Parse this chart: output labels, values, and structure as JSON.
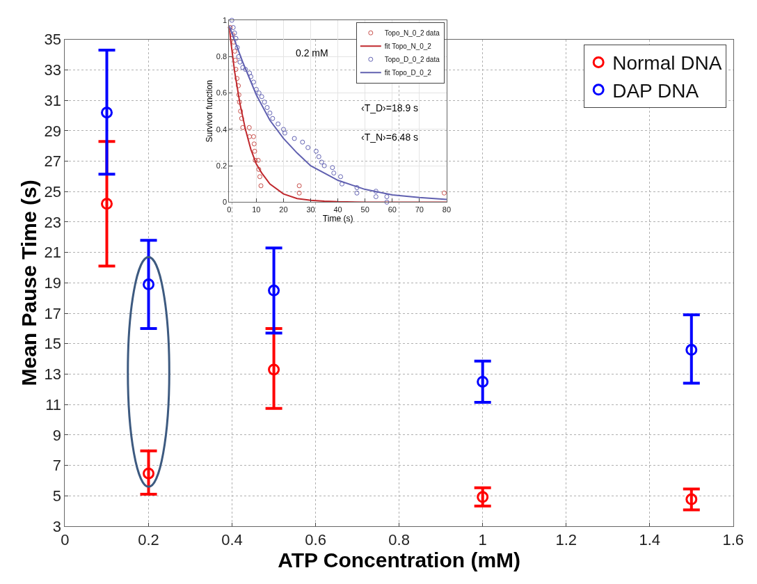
{
  "chart_data": [
    {
      "type": "scatter",
      "xlabel": "ATP Concentration (mM)",
      "ylabel": "Mean Pause Time (s)",
      "xlim": [
        0,
        1.6
      ],
      "xticks": [
        0,
        0.2,
        0.4,
        0.6,
        0.8,
        1,
        1.2,
        1.4,
        1.6
      ],
      "ylim": [
        3,
        35
      ],
      "yticks": [
        3,
        5,
        7,
        9,
        11,
        13,
        15,
        17,
        19,
        21,
        23,
        25,
        27,
        29,
        31,
        33,
        35
      ],
      "grid": true,
      "legend": "top right",
      "marker": "circle",
      "x": [
        0.1,
        0.2,
        0.5,
        1,
        1.5
      ],
      "series": [
        {
          "name": "Normal DNA",
          "color": "#ff0000",
          "values": [
            24.2,
            6.47,
            13.3,
            4.92,
            4.77
          ],
          "errors": [
            [
              20.1,
              28.3
            ],
            [
              5.1,
              7.95
            ],
            [
              10.75,
              16.0
            ],
            [
              4.33,
              5.53
            ],
            [
              4.07,
              5.45
            ]
          ]
        },
        {
          "name": "DAP DNA",
          "color": "#0000ff",
          "values": [
            30.2,
            18.9,
            18.5,
            12.5,
            14.6
          ],
          "errors": [
            [
              26.15,
              34.3
            ],
            [
              16.0,
              21.8
            ],
            [
              15.7,
              21.3
            ],
            [
              11.15,
              13.86
            ],
            [
              12.4,
              16.9
            ]
          ]
        }
      ]
    },
    {
      "type": "scatter",
      "xlabel": "Time (s)",
      "ylabel": "Survivor function",
      "xlim": [
        0,
        80
      ],
      "xticks": [
        0,
        10,
        20,
        30,
        40,
        50,
        60,
        70,
        80
      ],
      "ylim": [
        0,
        1
      ],
      "yticks": [
        0,
        0.2,
        0.4,
        0.6,
        0.8,
        1
      ],
      "grid": true,
      "legend": "top right",
      "annotations": [
        "0.2 mM",
        "‹T_D›=18.9 s",
        "‹T_N›=6.48 s"
      ],
      "series": [
        {
          "name": "Topo_N_0_2 data",
          "type": "scatter",
          "marker": "circle",
          "color": "#c8504b",
          "x": [
            0.4,
            1.3,
            1.7,
            2.1,
            2.3,
            2.5,
            2.9,
            3.4,
            3.6,
            3.8,
            4.2,
            4.6,
            5.0,
            7.4,
            7.5,
            9.0,
            9.2,
            9.4,
            9.6,
            10.7,
            10.9,
            11.3,
            11.7,
            25.8,
            25.8,
            79.1
          ],
          "values": [
            0.96,
            0.92,
            0.88,
            0.83,
            0.78,
            0.73,
            0.68,
            0.64,
            0.59,
            0.55,
            0.5,
            0.46,
            0.41,
            0.41,
            0.36,
            0.36,
            0.32,
            0.28,
            0.23,
            0.23,
            0.18,
            0.14,
            0.09,
            0.09,
            0.05,
            0.05
          ]
        },
        {
          "name": "fit Topo_N_0_2",
          "type": "line",
          "color": "#c0282d",
          "x": [
            0,
            2,
            4,
            6,
            8,
            10,
            12,
            15,
            20,
            25,
            30,
            35,
            40,
            50,
            60,
            80
          ],
          "values": [
            0.96,
            0.72,
            0.54,
            0.4,
            0.29,
            0.21,
            0.16,
            0.1,
            0.045,
            0.02,
            0.01,
            0.005,
            0.002,
            0,
            0,
            0
          ]
        },
        {
          "name": "Topo_D_0_2 data",
          "type": "scatter",
          "marker": "circle",
          "color": "#6464b4",
          "x": [
            1,
            1.5,
            2,
            2.5,
            3,
            3.5,
            4,
            5,
            6,
            7.5,
            8,
            9,
            10,
            11,
            12,
            13,
            14,
            15,
            16,
            18,
            20,
            20.5,
            24,
            27,
            29,
            32,
            33,
            34,
            35,
            38,
            38.5,
            41,
            41.5,
            47,
            47,
            54,
            54,
            58,
            58
          ],
          "values": [
            1.0,
            0.96,
            0.93,
            0.9,
            0.85,
            0.8,
            0.77,
            0.74,
            0.73,
            0.71,
            0.69,
            0.66,
            0.62,
            0.6,
            0.58,
            0.55,
            0.52,
            0.49,
            0.46,
            0.43,
            0.4,
            0.38,
            0.35,
            0.33,
            0.3,
            0.28,
            0.25,
            0.22,
            0.2,
            0.19,
            0.16,
            0.14,
            0.1,
            0.08,
            0.05,
            0.06,
            0.03,
            0.03,
            0
          ]
        },
        {
          "name": "fit Topo_D_0_2",
          "type": "line",
          "color": "#6060b0",
          "x": [
            0,
            5,
            10,
            15,
            20,
            25,
            30,
            40,
            50,
            60,
            70,
            80
          ],
          "values": [
            0.97,
            0.77,
            0.59,
            0.45,
            0.35,
            0.27,
            0.2,
            0.12,
            0.07,
            0.04,
            0.025,
            0.015
          ]
        }
      ]
    }
  ]
}
